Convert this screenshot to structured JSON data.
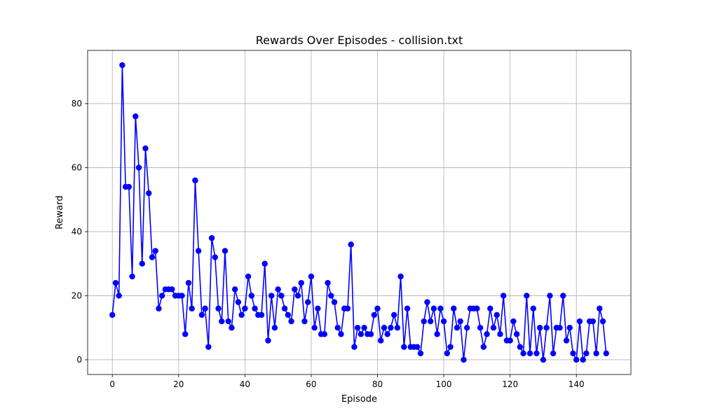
{
  "chart_data": {
    "type": "line",
    "title": "Rewards Over Episodes - collision.txt",
    "xlabel": "Episode",
    "ylabel": "Reward",
    "xlim": [
      -7.45,
      156.45
    ],
    "ylim": [
      -4.6,
      96.6
    ],
    "xticks": [
      0,
      20,
      40,
      60,
      80,
      100,
      120,
      140
    ],
    "yticks": [
      0,
      20,
      40,
      60,
      80
    ],
    "grid": true,
    "line_color": "#0000ff",
    "marker": "circle",
    "series": [
      {
        "x": [
          0,
          1,
          2,
          3,
          4,
          5,
          6,
          7,
          8,
          9,
          10,
          11,
          12,
          13,
          14,
          15,
          16,
          17,
          18,
          19,
          20,
          21,
          22,
          23,
          24,
          25,
          26,
          27,
          28,
          29,
          30,
          31,
          32,
          33,
          34,
          35,
          36,
          37,
          38,
          39,
          40,
          41,
          42,
          43,
          44,
          45,
          46,
          47,
          48,
          49,
          50,
          51,
          52,
          53,
          54,
          55,
          56,
          57,
          58,
          59,
          60,
          61,
          62,
          63,
          64,
          65,
          66,
          67,
          68,
          69,
          70,
          71,
          72,
          73,
          74,
          75,
          76,
          77,
          78,
          79,
          80,
          81,
          82,
          83,
          84,
          85,
          86,
          87,
          88,
          89,
          90,
          91,
          92,
          93,
          94,
          95,
          96,
          97,
          98,
          99,
          100,
          101,
          102,
          103,
          104,
          105,
          106,
          107,
          108,
          109,
          110,
          111,
          112,
          113,
          114,
          115,
          116,
          117,
          118,
          119,
          120,
          121,
          122,
          123,
          124,
          125,
          126,
          127,
          128,
          129,
          130,
          131,
          132,
          133,
          134,
          135,
          136,
          137,
          138,
          139,
          140,
          141,
          142,
          143,
          144,
          145,
          146,
          147,
          148,
          149
        ],
        "y": [
          14,
          24,
          20,
          92,
          54,
          54,
          26,
          76,
          60,
          30,
          66,
          52,
          32,
          34,
          16,
          20,
          22,
          22,
          22,
          20,
          20,
          20,
          8,
          24,
          16,
          56,
          34,
          14,
          16,
          4,
          38,
          32,
          16,
          12,
          34,
          12,
          10,
          22,
          18,
          14,
          16,
          26,
          20,
          16,
          14,
          14,
          30,
          6,
          20,
          10,
          22,
          20,
          16,
          14,
          12,
          22,
          20,
          24,
          12,
          18,
          26,
          10,
          16,
          8,
          8,
          24,
          20,
          18,
          10,
          8,
          16,
          16,
          36,
          4,
          10,
          8,
          10,
          8,
          8,
          14,
          16,
          6,
          10,
          8,
          10,
          14,
          10,
          26,
          4,
          16,
          4,
          4,
          4,
          2,
          12,
          18,
          12,
          16,
          8,
          16,
          12,
          2,
          4,
          16,
          10,
          12,
          0,
          10,
          16,
          16,
          16,
          10,
          4,
          8,
          16,
          10,
          14,
          8,
          20,
          6,
          6,
          12,
          8,
          4,
          2,
          20,
          2,
          16,
          2,
          10,
          0,
          10,
          20,
          2,
          10,
          10,
          20,
          6,
          10,
          2,
          0,
          12,
          0,
          2,
          12,
          12,
          2,
          16,
          12,
          2
        ]
      }
    ]
  }
}
